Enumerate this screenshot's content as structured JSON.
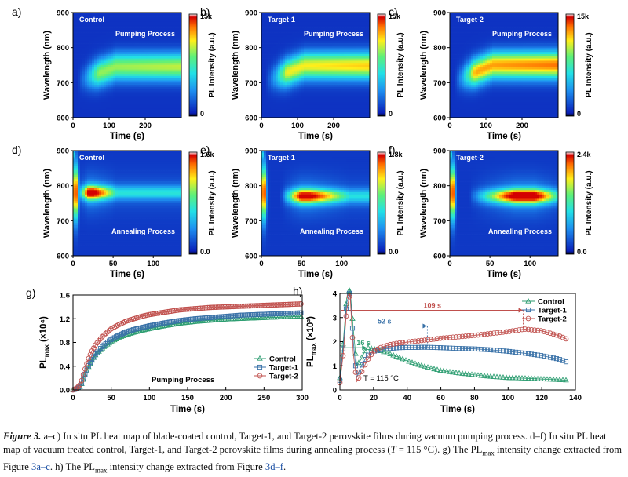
{
  "colors": {
    "background": "#ffffff",
    "heat_low": "#0a1fb8",
    "heat_high": "#d40000",
    "control": "#2e9e72",
    "target1": "#3a72a8",
    "target2": "#c0504d",
    "axis": "#000000"
  },
  "caption": {
    "lead": "Figure 3.",
    "p1": " a–c) In situ PL heat map of blade-coated control, Target-1, and Target-2 perovskite films during vacuum pumping process. d–f) In situ PL heat map of vacuum treated control, Target-1, and Target-2 perovskite films during annealing process (",
    "T": "T",
    "p2": " = 115 °C). g) The PL",
    "sub1": "max",
    "p3": " intensity change extracted from Figure ",
    "ref1": "3a–c",
    "p4": ". h) The PL",
    "sub2": "max",
    "p5": " intensity change extracted from Figure ",
    "ref2": "3d–f",
    "p6": "."
  },
  "chart_data": [
    {
      "panel": "a)",
      "type": "heatmap",
      "sample": "Control",
      "process": "Pumping Process",
      "xlabel": "Time (s)",
      "ylabel": "Wavelength (nm)",
      "cbar_label": "PL Intensity (a.u.)",
      "xlim": [
        0,
        300
      ],
      "ylim": [
        600,
        900
      ],
      "xticks": [
        "0",
        "100",
        "200"
      ],
      "yticks": [
        "600",
        "700",
        "800",
        "900"
      ],
      "cbar_ticks": [
        "0",
        "15k"
      ],
      "cbar_max": 15000,
      "emission": {
        "center_start_nm": 700,
        "center_end_nm": 745,
        "rise_end_s": 60,
        "peak_relative": 0.62
      }
    },
    {
      "panel": "b)",
      "type": "heatmap",
      "sample": "Target-1",
      "process": "Pumping Process",
      "xlabel": "Time (s)",
      "ylabel": "Wavelength (nm)",
      "cbar_label": "PL Intensity (a.u.)",
      "xlim": [
        0,
        300
      ],
      "ylim": [
        600,
        900
      ],
      "xticks": [
        "0",
        "100",
        "200"
      ],
      "yticks": [
        "600",
        "700",
        "800",
        "900"
      ],
      "cbar_ticks": [
        "0",
        "15k"
      ],
      "cbar_max": 15000,
      "emission": {
        "center_start_nm": 700,
        "center_end_nm": 748,
        "rise_end_s": 60,
        "peak_relative": 0.72
      }
    },
    {
      "panel": "c)",
      "type": "heatmap",
      "sample": "Target-2",
      "process": "Pumping Process",
      "xlabel": "Time (s)",
      "ylabel": "Wavelength (nm)",
      "cbar_label": "PL Intensity (a.u.)",
      "xlim": [
        0,
        300
      ],
      "ylim": [
        600,
        900
      ],
      "xticks": [
        "0",
        "100",
        "200"
      ],
      "yticks": [
        "600",
        "700",
        "800",
        "900"
      ],
      "cbar_ticks": [
        "0",
        "15k"
      ],
      "cbar_max": 15000,
      "emission": {
        "center_start_nm": 700,
        "center_end_nm": 750,
        "rise_end_s": 60,
        "peak_relative": 0.82
      }
    },
    {
      "panel": "d)",
      "type": "heatmap",
      "sample": "Control",
      "process": "Annealing Process",
      "xlabel": "Time (s)",
      "ylabel": "Wavelength (nm)",
      "cbar_label": "PL Intensity (a.u.)",
      "xlim": [
        0,
        135
      ],
      "ylim": [
        600,
        900
      ],
      "xticks": [
        "0",
        "50",
        "100"
      ],
      "yticks": [
        "600",
        "700",
        "800",
        "900"
      ],
      "cbar_ticks": [
        "0.0",
        "1.6k"
      ],
      "cbar_max": 1600,
      "emission": {
        "center_nm": 780,
        "initial_peak_s": 3,
        "band_start_s": 12,
        "band_peak_s": 25,
        "band_fade_s": 55,
        "peak_relative": 0.9
      }
    },
    {
      "panel": "e)",
      "type": "heatmap",
      "sample": "Target-1",
      "process": "Annealing Process",
      "xlabel": "Time (s)",
      "ylabel": "Wavelength (nm)",
      "cbar_label": "PL Intensity (a.u.)",
      "xlim": [
        0,
        135
      ],
      "ylim": [
        600,
        900
      ],
      "xticks": [
        "0",
        "50",
        "100"
      ],
      "yticks": [
        "600",
        "700",
        "800",
        "900"
      ],
      "cbar_ticks": [
        "0.0",
        "1.8k"
      ],
      "cbar_max": 1800,
      "emission": {
        "center_nm": 770,
        "initial_peak_s": 3,
        "band_start_s": 30,
        "band_peak_s": 60,
        "band_fade_s": 110,
        "peak_relative": 0.88
      }
    },
    {
      "panel": "f)",
      "type": "heatmap",
      "sample": "Target-2",
      "process": "Annealing Process",
      "xlabel": "Time (s)",
      "ylabel": "Wavelength (nm)",
      "cbar_label": "PL Intensity (a.u.)",
      "xlim": [
        0,
        135
      ],
      "ylim": [
        600,
        900
      ],
      "xticks": [
        "0",
        "50",
        "100"
      ],
      "yticks": [
        "600",
        "700",
        "800",
        "900"
      ],
      "cbar_ticks": [
        "0.0",
        "2.4k"
      ],
      "cbar_max": 2400,
      "emission": {
        "center_nm": 770,
        "initial_peak_s": 3,
        "band_start_s": 30,
        "band_peak_s": 105,
        "band_fade_s": 135,
        "peak_relative": 0.95
      }
    },
    {
      "panel": "g)",
      "type": "line",
      "xlabel": "Time (s)",
      "ylabel_main": "PL",
      "ylabel_sub": "max",
      "ylabel_unit": " (×10⁴)",
      "xlim": [
        0,
        300
      ],
      "ylim": [
        0.0,
        1.6
      ],
      "xticks": [
        0,
        50,
        100,
        150,
        200,
        250,
        300
      ],
      "yticks": [
        0.0,
        0.4,
        0.8,
        1.2,
        1.6
      ],
      "annotation": "Pumping Process",
      "x": [
        0,
        5,
        10,
        15,
        20,
        25,
        30,
        40,
        50,
        60,
        70,
        80,
        90,
        100,
        120,
        140,
        160,
        180,
        200,
        220,
        240,
        260,
        280,
        300
      ],
      "series": [
        {
          "name": "Control",
          "marker": "triangle",
          "values": [
            0.0,
            0.02,
            0.06,
            0.22,
            0.38,
            0.5,
            0.6,
            0.72,
            0.81,
            0.88,
            0.93,
            0.97,
            1.0,
            1.03,
            1.08,
            1.12,
            1.15,
            1.17,
            1.19,
            1.2,
            1.21,
            1.22,
            1.23,
            1.24
          ]
        },
        {
          "name": "Target-1",
          "marker": "square",
          "values": [
            0.0,
            0.02,
            0.07,
            0.24,
            0.4,
            0.52,
            0.62,
            0.75,
            0.85,
            0.92,
            0.98,
            1.02,
            1.05,
            1.08,
            1.13,
            1.17,
            1.2,
            1.22,
            1.24,
            1.26,
            1.27,
            1.28,
            1.29,
            1.3
          ]
        },
        {
          "name": "Target-2",
          "marker": "circle",
          "values": [
            0.0,
            0.03,
            0.1,
            0.32,
            0.52,
            0.66,
            0.77,
            0.92,
            1.03,
            1.1,
            1.16,
            1.2,
            1.24,
            1.27,
            1.31,
            1.35,
            1.37,
            1.39,
            1.4,
            1.41,
            1.42,
            1.43,
            1.44,
            1.45
          ]
        }
      ]
    },
    {
      "panel": "h)",
      "type": "line",
      "xlabel": "Time (s)",
      "ylabel_main": "PL",
      "ylabel_sub": "max",
      "ylabel_unit": " (×10³)",
      "xlim": [
        0,
        140
      ],
      "ylim": [
        0,
        4
      ],
      "xticks": [
        0,
        20,
        40,
        60,
        80,
        100,
        120,
        140
      ],
      "yticks": [
        0,
        1,
        2,
        3,
        4
      ],
      "annotation": "T = 115 °C",
      "x": [
        0,
        2,
        4,
        6,
        8,
        10,
        12,
        16,
        20,
        25,
        30,
        35,
        40,
        45,
        50,
        55,
        60,
        70,
        80,
        90,
        100,
        110,
        120,
        130,
        135
      ],
      "series": [
        {
          "name": "Control",
          "marker": "triangle",
          "values": [
            0.5,
            2.0,
            3.8,
            4.2,
            2.5,
            1.0,
            1.2,
            1.76,
            1.7,
            1.6,
            1.48,
            1.35,
            1.2,
            1.08,
            0.98,
            0.88,
            0.8,
            0.7,
            0.62,
            0.55,
            0.5,
            0.48,
            0.45,
            0.42,
            0.4
          ]
        },
        {
          "name": "Target-1",
          "marker": "square",
          "values": [
            0.4,
            1.8,
            3.6,
            4.1,
            2.0,
            0.5,
            0.9,
            1.4,
            1.6,
            1.68,
            1.72,
            1.75,
            1.76,
            1.76,
            1.77,
            1.76,
            1.75,
            1.72,
            1.7,
            1.66,
            1.6,
            1.52,
            1.42,
            1.28,
            1.15
          ]
        },
        {
          "name": "Target-2",
          "marker": "circle",
          "values": [
            0.3,
            1.5,
            3.3,
            4.0,
            1.5,
            0.35,
            0.6,
            1.2,
            1.6,
            1.78,
            1.88,
            1.94,
            1.98,
            2.02,
            2.06,
            2.1,
            2.14,
            2.2,
            2.26,
            2.34,
            2.42,
            2.52,
            2.45,
            2.25,
            2.1
          ]
        }
      ],
      "markers": [
        {
          "label": "16 s",
          "x": 16,
          "level": 1.75,
          "series": "Control"
        },
        {
          "label": "52 s",
          "x": 52,
          "level": 2.65,
          "series": "Target-1"
        },
        {
          "label": "109 s",
          "x": 109,
          "level": 3.3,
          "series": "Target-2"
        }
      ]
    }
  ]
}
